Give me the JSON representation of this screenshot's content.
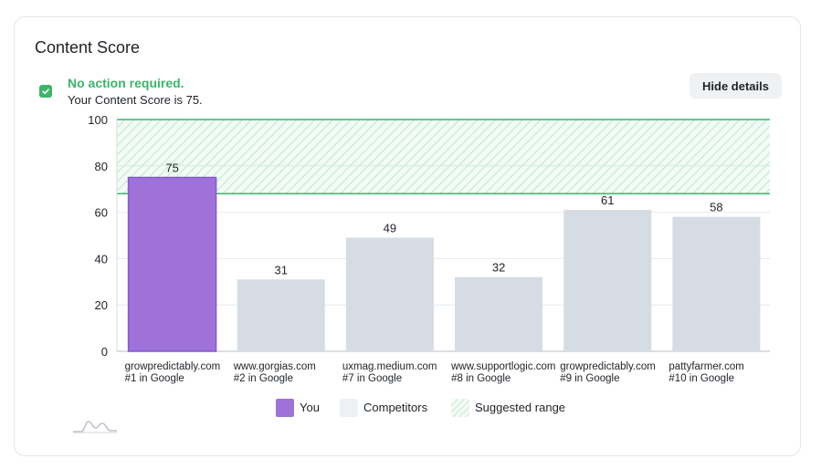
{
  "card": {
    "title": "Content Score",
    "hide_button_label": "Hide details"
  },
  "status": {
    "title": "No action required.",
    "message": "Your Content Score is 75."
  },
  "legend": {
    "you": "You",
    "competitors": "Competitors",
    "suggested_range": "Suggested range"
  },
  "colors": {
    "you": "#9e72d9",
    "competitor": "#d5dce4",
    "range": "#3cb56b",
    "accent_green": "#3cb56b"
  },
  "icons": {
    "status": "check-icon",
    "sparkline": "sparkline-icon"
  },
  "chart_data": {
    "type": "bar",
    "title": "",
    "xlabel": "",
    "ylabel": "",
    "ylim": [
      0,
      100
    ],
    "yticks": [
      0,
      20,
      40,
      60,
      80,
      100
    ],
    "grid": true,
    "legend_position": "bottom",
    "suggested_range": [
      68,
      100
    ],
    "categories": [
      {
        "domain": "growpredictably.com",
        "rank": "#1 in Google"
      },
      {
        "domain": "www.gorgias.com",
        "rank": "#2 in Google"
      },
      {
        "domain": "uxmag.medium.com",
        "rank": "#7 in Google"
      },
      {
        "domain": "www.supportlogic.com",
        "rank": "#8 in Google"
      },
      {
        "domain": "growpredictably.com",
        "rank": "#9 in Google"
      },
      {
        "domain": "pattyfarmer.com",
        "rank": "#10 in Google"
      }
    ],
    "values": [
      75,
      31,
      49,
      32,
      61,
      58
    ],
    "groups": [
      "you",
      "competitor",
      "competitor",
      "competitor",
      "competitor",
      "competitor"
    ]
  }
}
